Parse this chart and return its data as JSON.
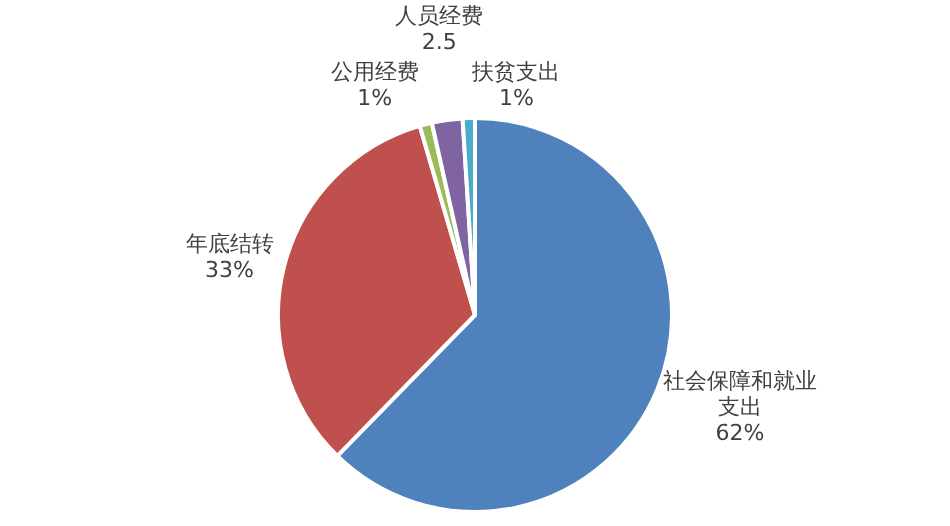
{
  "chart_data": {
    "type": "pie",
    "categories": [
      "社会保障和就业支出",
      "年底结转",
      "公用经费",
      "人员经费",
      "扶贫支出"
    ],
    "values": [
      62,
      33,
      1,
      2.5,
      1
    ],
    "value_labels": [
      "62%",
      "33%",
      "1%",
      "2.5",
      "1%"
    ],
    "colors": [
      "#4f81bd",
      "#c0504d",
      "#9bbb59",
      "#8064a2",
      "#4bacc6"
    ],
    "legend": false
  }
}
